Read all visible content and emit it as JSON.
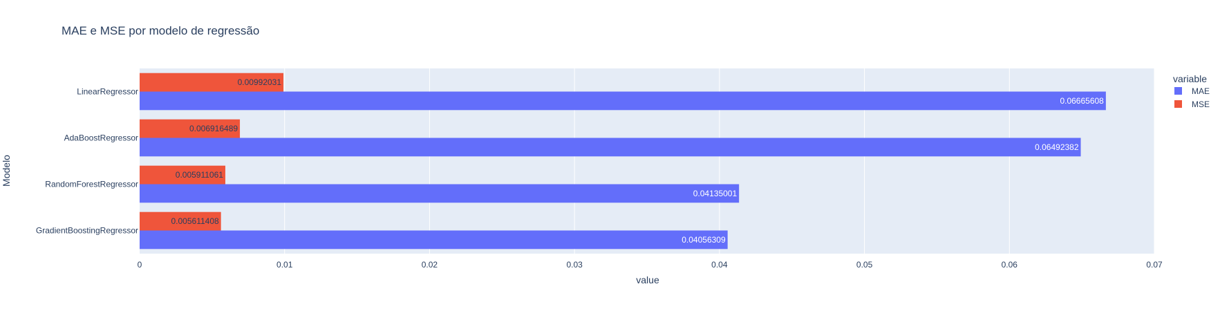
{
  "chart_data": {
    "type": "bar",
    "orientation": "horizontal",
    "barmode": "group",
    "title": "MAE e MSE por modelo de regressão",
    "xlabel": "value",
    "ylabel": "Modelo",
    "categories": [
      "LinearRegressor",
      "AdaBoostRegressor",
      "RandomForestRegressor",
      "GradientBoostingRegressor"
    ],
    "series": [
      {
        "name": "MAE",
        "color": "#636efa",
        "values": [
          0.06665608,
          0.06492382,
          0.04135001,
          0.04056309
        ],
        "labels": [
          "0.06665608",
          "0.06492382",
          "0.04135001",
          "0.04056309"
        ]
      },
      {
        "name": "MSE",
        "color": "#ef553b",
        "values": [
          0.00992031,
          0.006916489,
          0.005911061,
          0.005611408
        ],
        "labels": [
          "0.00992031",
          "0.006916489",
          "0.005911061",
          "0.005611408"
        ]
      }
    ],
    "xlim": [
      0,
      0.07
    ],
    "xticks": [
      0,
      0.01,
      0.02,
      0.03,
      0.04,
      0.05,
      0.06,
      0.07
    ],
    "xtick_labels": [
      "0",
      "0.01",
      "0.02",
      "0.03",
      "0.04",
      "0.05",
      "0.06",
      "0.07"
    ],
    "grid": true,
    "plot_background": "#e5ecf6",
    "legend": {
      "title": "variable",
      "position": "right"
    }
  }
}
